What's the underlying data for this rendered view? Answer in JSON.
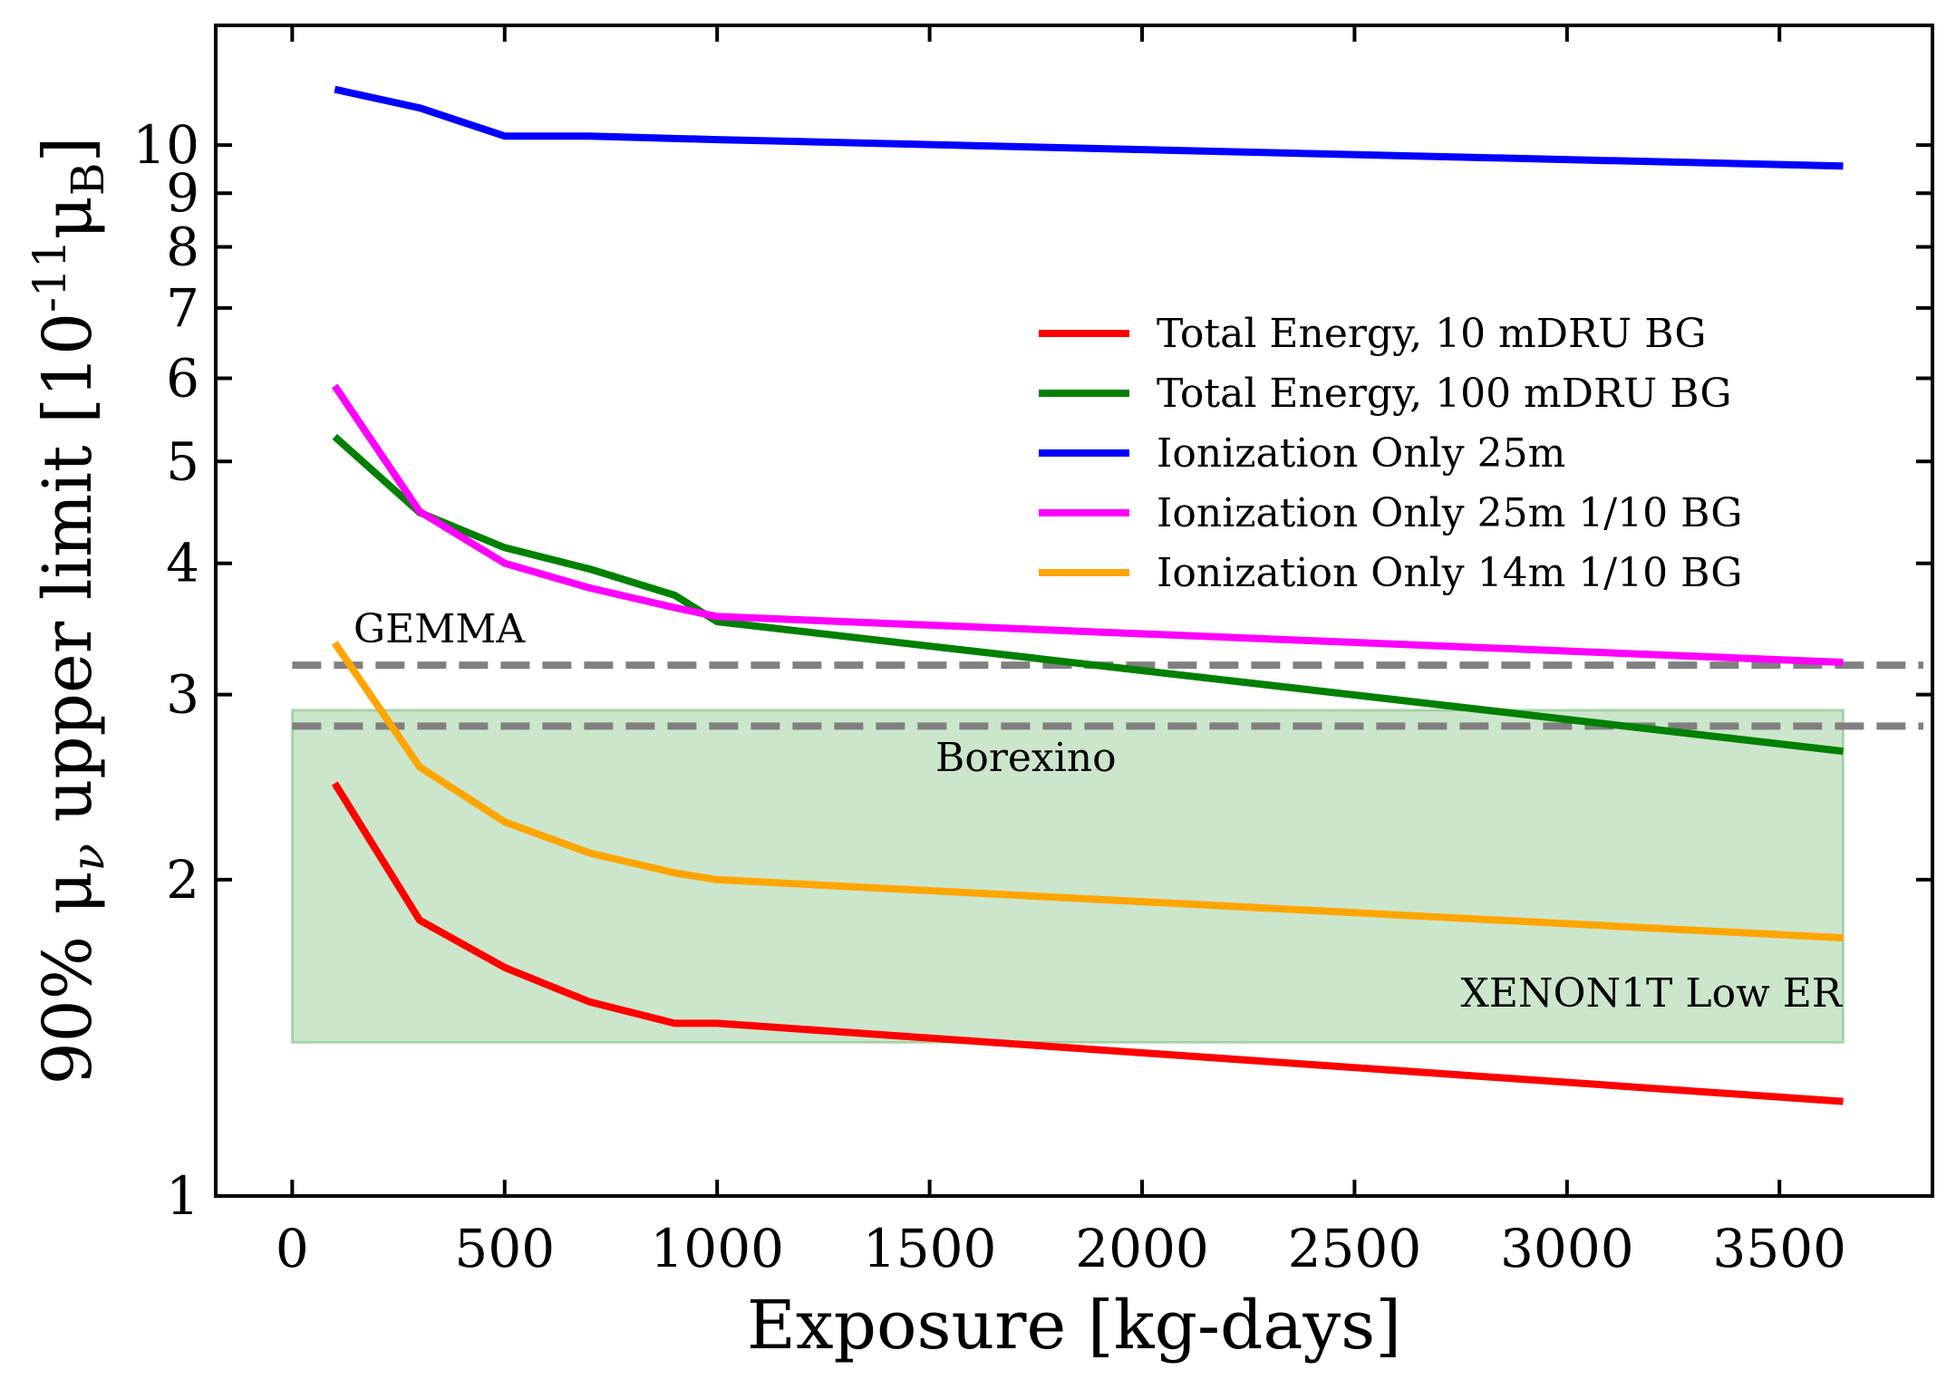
{
  "chart_data": {
    "type": "line",
    "xlabel": "Exposure [kg-days]",
    "ylabel_parts": {
      "pre": "90% μ",
      "sub1": "ν",
      "mid": " upper limit [10",
      "sup": "-11",
      "mu": "μ",
      "sub2": "B",
      "post": "]"
    },
    "xlim": [
      -180,
      3860
    ],
    "ylim": [
      1,
      13
    ],
    "yscale": "log",
    "xticks": [
      0,
      500,
      1000,
      1500,
      2000,
      2500,
      3000,
      3500
    ],
    "xtick_labels": [
      "0",
      "500",
      "1000",
      "1500",
      "2000",
      "2500",
      "3000",
      "3500"
    ],
    "yticks": [
      1,
      2,
      3,
      4,
      5,
      6,
      7,
      8,
      9,
      10
    ],
    "ytick_labels": [
      "1",
      "2",
      "3",
      "4",
      "5",
      "6",
      "7",
      "8",
      "9",
      "10"
    ],
    "series": [
      {
        "name": "Total Energy, 10 mDRU BG",
        "color": "#ff0000",
        "x": [
          100,
          300,
          500,
          700,
          900,
          1000,
          3650
        ],
        "values": [
          2.47,
          1.83,
          1.65,
          1.53,
          1.46,
          1.46,
          1.23
        ]
      },
      {
        "name": "Total Energy, 100 mDRU BG",
        "color": "#008000",
        "x": [
          100,
          300,
          500,
          700,
          900,
          1000,
          3650
        ],
        "values": [
          5.28,
          4.47,
          4.14,
          3.95,
          3.73,
          3.52,
          2.65
        ]
      },
      {
        "name": "Ionization Only 25m",
        "color": "#0000ff",
        "x": [
          100,
          300,
          500,
          700,
          1000,
          3650
        ],
        "values": [
          11.3,
          10.85,
          10.2,
          10.2,
          10.12,
          9.55
        ]
      },
      {
        "name": "Ionization Only 25m 1/10 BG",
        "color": "#ff00ff",
        "x": [
          100,
          300,
          500,
          700,
          900,
          1000,
          3650
        ],
        "values": [
          5.9,
          4.48,
          4.0,
          3.79,
          3.63,
          3.56,
          3.22
        ]
      },
      {
        "name": "Ionization Only 14m 1/10 BG",
        "color": "#ffa500",
        "x": [
          100,
          300,
          500,
          700,
          900,
          1000,
          3650
        ],
        "values": [
          3.36,
          2.56,
          2.27,
          2.12,
          2.03,
          2.0,
          1.76
        ]
      }
    ],
    "hlines": [
      {
        "name": "GEMMA",
        "y": 3.2,
        "color": "#808080",
        "style": "dashed"
      },
      {
        "name": "Borexino",
        "y": 2.8,
        "color": "#808080",
        "style": "dashed"
      }
    ],
    "bands": [
      {
        "name": "XENON1T Low ER",
        "x": [
          0,
          3650
        ],
        "y": [
          1.4,
          2.9
        ],
        "color": "#008000",
        "opacity": 0.2
      }
    ],
    "annotations": {
      "gemma": "GEMMA",
      "borexino": "Borexino",
      "xenon": "XENON1T Low ER"
    },
    "legend": {
      "position": "upper-right",
      "items": [
        "Total Energy, 10 mDRU BG",
        "Total Energy, 100 mDRU BG",
        "Ionization Only 25m",
        "Ionization Only 25m 1/10 BG",
        "Ionization Only 14m 1/10 BG"
      ]
    }
  }
}
